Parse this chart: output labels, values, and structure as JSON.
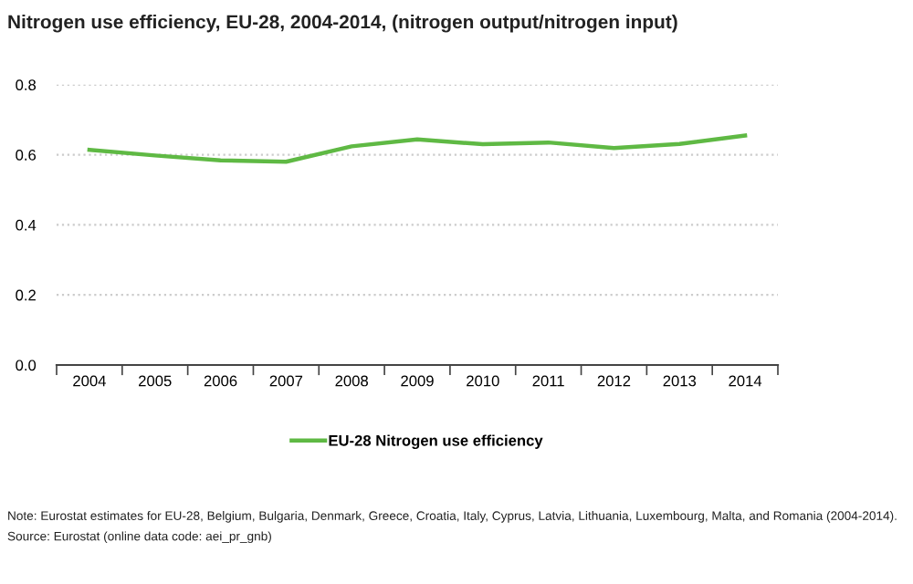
{
  "chart_data": {
    "type": "line",
    "title": "Nitrogen use efficiency, EU-28, 2004-2014, (nitrogen output/nitrogen input)",
    "categories": [
      "2004",
      "2005",
      "2006",
      "2007",
      "2008",
      "2009",
      "2010",
      "2011",
      "2012",
      "2013",
      "2014"
    ],
    "series": [
      {
        "name": "EU-28 Nitrogen use efficiency",
        "color": "#5fb944",
        "values": [
          0.614,
          0.598,
          0.584,
          0.58,
          0.624,
          0.644,
          0.63,
          0.635,
          0.619,
          0.631,
          0.655
        ]
      }
    ],
    "ylim": [
      0,
      0.8
    ],
    "yticks": [
      {
        "value": 0,
        "label": "0.0"
      },
      0.2,
      0.4,
      0.6,
      0.8
    ],
    "grid": "y",
    "legend": "bottom",
    "marker": "none",
    "line_style": "solid",
    "annotations": [
      "Note: Eurostat estimates for EU-28, Belgium, Bulgaria, Denmark, Greece, Croatia, Italy, Cyprus, Latvia, Lithuania, Luxembourg, Malta, and Romania (2004-2014).",
      "Source: Eurostat (online data code: aei_pr_gnb)"
    ]
  }
}
